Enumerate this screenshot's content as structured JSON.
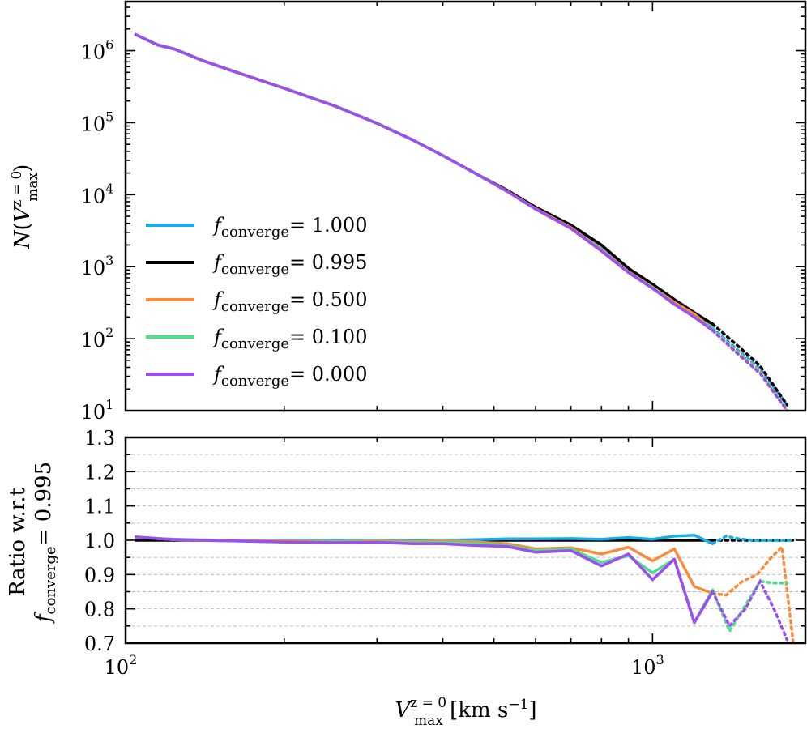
{
  "chart_data": [
    {
      "type": "line",
      "panel": "top",
      "xscale": "log",
      "yscale": "log",
      "xlim": [
        100,
        1950
      ],
      "ylim": [
        10,
        4800000
      ],
      "ylabel": "N(Vmax z=0)",
      "yticks": [
        {
          "value": 10,
          "base": "10",
          "exp": "1"
        },
        {
          "value": 100,
          "base": "10",
          "exp": "2"
        },
        {
          "value": 1000,
          "base": "10",
          "exp": "3"
        },
        {
          "value": 10000,
          "base": "10",
          "exp": "4"
        },
        {
          "value": 100000,
          "base": "10",
          "exp": "5"
        },
        {
          "value": 1000000,
          "base": "10",
          "exp": "6"
        }
      ],
      "legend": {
        "location": "lower-left",
        "prefix": "f",
        "subscript": "converge",
        "entries": [
          "= 1.000",
          "= 0.995",
          "= 0.500",
          "= 0.100",
          "= 0.000"
        ]
      },
      "series": [
        {
          "name": "1.000",
          "color": "#17aee8",
          "x": [
            104,
            115,
            124,
            140,
            160,
            200,
            250,
            300,
            350,
            400,
            460,
            530,
            600,
            700,
            800,
            900,
            1000,
            1100,
            1200,
            1300
          ],
          "y": [
            1700000,
            1200000,
            1050000,
            730000,
            520000,
            300000,
            170000,
            98000,
            58000,
            35000,
            20000,
            11300,
            6500,
            3500,
            1750,
            850,
            520,
            320,
            215,
            140
          ],
          "dotted_x": [
            1300,
            1450,
            1600,
            1800
          ],
          "dotted_y": [
            140,
            70,
            38,
            12
          ]
        },
        {
          "name": "0.995",
          "color": "#000000",
          "x": [
            104,
            115,
            124,
            140,
            160,
            200,
            250,
            300,
            350,
            400,
            460,
            530,
            600,
            700,
            800,
            900,
            1000,
            1100,
            1200,
            1300
          ],
          "y": [
            1700000,
            1200000,
            1050000,
            730000,
            520000,
            300000,
            170000,
            98000,
            58000,
            35000,
            20000,
            11500,
            6700,
            3800,
            2000,
            950,
            570,
            350,
            230,
            160
          ],
          "dotted_x": [
            1300,
            1450,
            1600,
            1800
          ],
          "dotted_y": [
            160,
            80,
            42,
            12
          ]
        },
        {
          "name": "0.500",
          "color": "#f98b3d",
          "x": [
            104,
            115,
            124,
            140,
            160,
            200,
            250,
            300,
            350,
            400,
            460,
            530,
            600,
            700,
            800,
            900,
            1000,
            1100,
            1200,
            1300
          ],
          "y": [
            1700000,
            1200000,
            1050000,
            730000,
            520000,
            300000,
            170000,
            98000,
            58000,
            35000,
            20000,
            11200,
            6400,
            3500,
            1700,
            850,
            520,
            320,
            220,
            135
          ],
          "dotted_x": [
            1300,
            1450,
            1600,
            1800
          ],
          "dotted_y": [
            135,
            66,
            35,
            10
          ]
        },
        {
          "name": "0.100",
          "color": "#4fdc8c",
          "x": [
            104,
            115,
            124,
            140,
            160,
            200,
            250,
            300,
            350,
            400,
            460,
            530,
            600,
            700,
            800,
            900,
            1000,
            1100,
            1200,
            1300
          ],
          "y": [
            1700000,
            1200000,
            1050000,
            730000,
            520000,
            300000,
            170000,
            98000,
            58000,
            35000,
            20000,
            11100,
            6300,
            3400,
            1650,
            830,
            510,
            300,
            200,
            135
          ],
          "dotted_x": [
            1300,
            1450,
            1600,
            1800
          ],
          "dotted_y": [
            135,
            64,
            34,
            10
          ]
        },
        {
          "name": "0.000",
          "color": "#9d4ef0",
          "x": [
            104,
            115,
            124,
            140,
            160,
            200,
            250,
            300,
            350,
            400,
            460,
            530,
            600,
            700,
            800,
            900,
            1000,
            1100,
            1200,
            1300
          ],
          "y": [
            1700000,
            1200000,
            1050000,
            730000,
            520000,
            300000,
            170000,
            98000,
            58000,
            35000,
            20000,
            11100,
            6300,
            3400,
            1650,
            830,
            500,
            300,
            200,
            130
          ],
          "dotted_x": [
            1300,
            1450,
            1600,
            1800
          ],
          "dotted_y": [
            130,
            62,
            33,
            10
          ]
        }
      ]
    },
    {
      "type": "line",
      "panel": "bottom",
      "xscale": "log",
      "xlim": [
        100,
        1950
      ],
      "ylim": [
        0.7,
        1.3
      ],
      "xlabel": "Vmax z=0 [km s−1]",
      "ylabel_line1": "Ratio w.r.t",
      "ylabel_line2": "= 0.995",
      "grid": "horizontal dashed",
      "xticks": [
        {
          "value": 100,
          "base": "10",
          "exp": "2"
        },
        {
          "value": 1000,
          "base": "10",
          "exp": "3"
        }
      ],
      "yticks": [
        "0.7",
        "0.8",
        "0.9",
        "1.0",
        "1.1",
        "1.2",
        "1.3"
      ],
      "series": [
        {
          "name": "1.000",
          "color": "#17aee8",
          "x": [
            104,
            115,
            124,
            140,
            160,
            200,
            250,
            300,
            350,
            400,
            460,
            530,
            600,
            700,
            800,
            900,
            1000,
            1100,
            1200,
            1300
          ],
          "y": [
            1.01,
            1.005,
            1.003,
            1.001,
            1.0,
            1.0,
            1.0,
            1.0,
            1.0,
            1.0,
            1.002,
            1.004,
            1.004,
            1.005,
            1.003,
            1.008,
            1.003,
            1.012,
            1.015,
            0.99
          ],
          "dotted_x": [
            1300,
            1380,
            1450,
            1550,
            1650,
            1750,
            1850
          ],
          "dotted_y": [
            0.99,
            1.012,
            1.005,
            1.0,
            1.0,
            1.0,
            1.0
          ]
        },
        {
          "name": "0.995",
          "color": "#000000",
          "x": [
            104,
            115,
            124,
            140,
            160,
            200,
            250,
            300,
            350,
            400,
            460,
            530,
            600,
            700,
            800,
            900,
            1000,
            1100,
            1200,
            1300
          ],
          "y": [
            1.0,
            1.0,
            1.0,
            1.0,
            1.0,
            1.0,
            1.0,
            1.0,
            1.0,
            1.0,
            1.0,
            1.0,
            1.0,
            1.0,
            1.0,
            1.0,
            1.0,
            1.0,
            1.0,
            1.0
          ],
          "dotted_x": [
            1300,
            1850
          ],
          "dotted_y": [
            1.0,
            1.0
          ]
        },
        {
          "name": "0.500",
          "color": "#f98b3d",
          "x": [
            104,
            115,
            124,
            140,
            160,
            200,
            250,
            300,
            350,
            400,
            460,
            530,
            600,
            700,
            800,
            900,
            1000,
            1100,
            1200,
            1300
          ],
          "y": [
            1.01,
            1.005,
            1.002,
            1.0,
            1.0,
            0.998,
            0.997,
            0.998,
            0.996,
            0.998,
            0.995,
            0.99,
            0.975,
            0.978,
            0.96,
            0.98,
            0.94,
            0.975,
            0.865,
            0.845
          ],
          "dotted_x": [
            1300,
            1380,
            1480,
            1580,
            1680,
            1760,
            1850
          ],
          "dotted_y": [
            0.845,
            0.84,
            0.88,
            0.9,
            0.95,
            0.98,
            0.7
          ]
        },
        {
          "name": "0.100",
          "color": "#4fdc8c",
          "x": [
            104,
            115,
            124,
            140,
            160,
            200,
            250,
            300,
            350,
            400,
            460,
            530,
            600,
            700,
            800,
            900,
            1000,
            1100,
            1200,
            1300
          ],
          "y": [
            1.01,
            1.005,
            1.002,
            1.0,
            0.998,
            0.995,
            0.995,
            0.995,
            0.992,
            0.994,
            0.99,
            0.985,
            0.97,
            0.975,
            0.935,
            0.955,
            0.905,
            0.945,
            0.76,
            0.855
          ],
          "dotted_x": [
            1300,
            1400,
            1500,
            1600,
            1700,
            1800
          ],
          "dotted_y": [
            0.855,
            0.735,
            0.81,
            0.88,
            0.875,
            0.875
          ]
        },
        {
          "name": "0.000",
          "color": "#9d4ef0",
          "x": [
            104,
            115,
            124,
            140,
            160,
            200,
            250,
            300,
            350,
            400,
            460,
            530,
            600,
            700,
            800,
            900,
            1000,
            1100,
            1200,
            1300
          ],
          "y": [
            1.01,
            1.005,
            1.002,
            1.0,
            0.998,
            0.995,
            0.993,
            0.994,
            0.99,
            0.99,
            0.985,
            0.982,
            0.965,
            0.97,
            0.925,
            0.96,
            0.885,
            0.945,
            0.76,
            0.85
          ],
          "dotted_x": [
            1300,
            1400,
            1500,
            1600,
            1700,
            1800
          ],
          "dotted_y": [
            0.85,
            0.75,
            0.8,
            0.88,
            0.8,
            0.71
          ]
        }
      ]
    }
  ]
}
